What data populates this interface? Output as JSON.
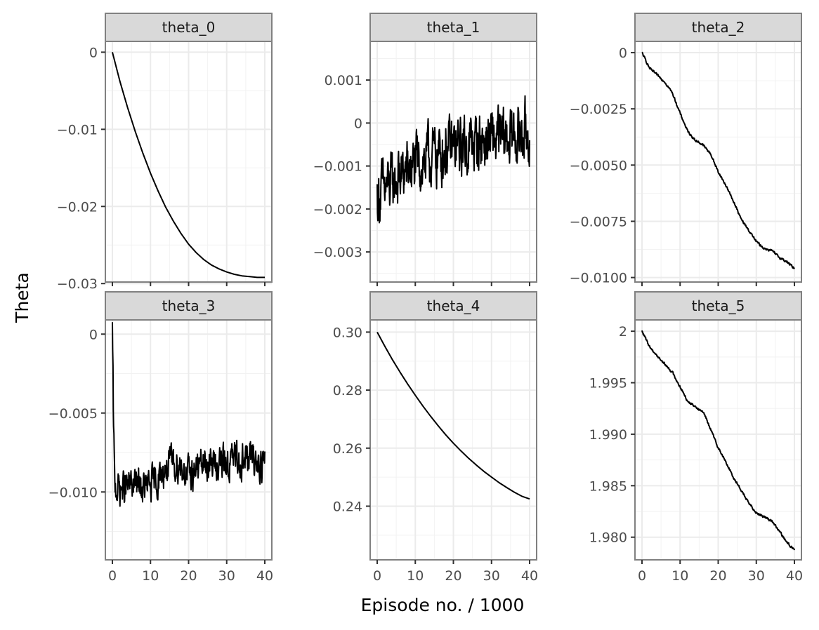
{
  "figure": {
    "xlabel": "Episode no. / 1000",
    "ylabel": "Theta"
  },
  "chart_data": [
    {
      "type": "line",
      "panel": "theta_0",
      "title": "theta_0",
      "xlim": [
        0,
        40
      ],
      "ylim": [
        -0.0298,
        0.0014
      ],
      "xticks": [
        0,
        10,
        20,
        30,
        40
      ],
      "xtick_labels": [
        "0",
        "10",
        "20",
        "30",
        "40"
      ],
      "yticks": [
        0,
        -0.01,
        -0.02,
        -0.03
      ],
      "ytick_labels": [
        "0",
        "−0.01",
        "−0.02",
        "−0.03"
      ],
      "grid": true,
      "noise": 0,
      "series": [
        {
          "x": [
            0,
            2,
            4,
            6,
            8,
            10,
            12,
            14,
            16,
            18,
            20,
            22,
            24,
            26,
            28,
            30,
            32,
            34,
            36,
            38,
            40
          ],
          "values": [
            0,
            -0.0038,
            -0.0072,
            -0.0103,
            -0.0131,
            -0.0157,
            -0.018,
            -0.0201,
            -0.0219,
            -0.0235,
            -0.0249,
            -0.026,
            -0.0269,
            -0.0276,
            -0.0281,
            -0.0285,
            -0.0288,
            -0.029,
            -0.0291,
            -0.0292,
            -0.0292
          ]
        }
      ]
    },
    {
      "type": "line",
      "panel": "theta_1",
      "title": "theta_1",
      "xlim": [
        0,
        40
      ],
      "ylim": [
        -0.0037,
        0.0019
      ],
      "xticks": [
        0,
        10,
        20,
        30,
        40
      ],
      "xtick_labels": [
        "0",
        "10",
        "20",
        "30",
        "40"
      ],
      "yticks": [
        0.001,
        0,
        -0.001,
        -0.002,
        -0.003
      ],
      "ytick_labels": [
        "0.001",
        "0",
        "−0.001",
        "−0.002",
        "−0.003"
      ],
      "grid": true,
      "noise": 0.0011,
      "series": [
        {
          "x": [
            0,
            4,
            8,
            12,
            16,
            20,
            24,
            28,
            32,
            36,
            40
          ],
          "values": [
            -0.0017,
            -0.0014,
            -0.0011,
            -0.0009,
            -0.0007,
            -0.0006,
            -0.0005,
            -0.0004,
            -0.0004,
            -0.0003,
            -0.0002
          ]
        }
      ]
    },
    {
      "type": "line",
      "panel": "theta_2",
      "title": "theta_2",
      "xlim": [
        0,
        40
      ],
      "ylim": [
        -0.0102,
        0.0005
      ],
      "xticks": [
        0,
        10,
        20,
        30,
        40
      ],
      "xtick_labels": [
        "0",
        "10",
        "20",
        "30",
        "40"
      ],
      "yticks": [
        0,
        -0.0025,
        -0.005,
        -0.0075,
        -0.01
      ],
      "ytick_labels": [
        "0",
        "−0.0025",
        "−0.0050",
        "−0.0075",
        "−0.0100"
      ],
      "grid": true,
      "noise": 8e-05,
      "series": [
        {
          "x": [
            0,
            2,
            4,
            6,
            8,
            10,
            12,
            14,
            16,
            18,
            20,
            22,
            24,
            26,
            28,
            30,
            32,
            34,
            36,
            38,
            40
          ],
          "values": [
            0,
            -0.0007,
            -0.001,
            -0.0013,
            -0.0018,
            -0.0027,
            -0.0035,
            -0.0039,
            -0.0041,
            -0.0045,
            -0.0053,
            -0.0059,
            -0.0066,
            -0.0074,
            -0.0079,
            -0.0084,
            -0.0087,
            -0.0088,
            -0.0091,
            -0.0093,
            -0.0096
          ]
        }
      ]
    },
    {
      "type": "line",
      "panel": "theta_3",
      "title": "theta_3",
      "xlim": [
        0,
        40
      ],
      "ylim": [
        -0.0143,
        0.0009
      ],
      "xticks": [
        0,
        10,
        20,
        30,
        40
      ],
      "xtick_labels": [
        "0",
        "10",
        "20",
        "30",
        "40"
      ],
      "yticks": [
        0,
        -0.005,
        -0.01
      ],
      "ytick_labels": [
        "0",
        "−0.005",
        "−0.010"
      ],
      "grid": true,
      "noise": 0.0017,
      "series": [
        {
          "x": [
            0,
            0.3,
            0.6,
            1,
            2,
            4,
            6,
            8,
            10,
            12,
            14,
            16,
            18,
            20,
            22,
            24,
            26,
            28,
            30,
            32,
            34,
            36,
            38,
            40
          ],
          "values": [
            0.0002,
            -0.006,
            -0.0095,
            -0.0097,
            -0.0098,
            -0.0097,
            -0.0095,
            -0.0098,
            -0.0096,
            -0.0092,
            -0.0085,
            -0.0082,
            -0.0083,
            -0.009,
            -0.0085,
            -0.0082,
            -0.0083,
            -0.0081,
            -0.0083,
            -0.0079,
            -0.008,
            -0.0078,
            -0.0081,
            -0.0082
          ]
        }
      ]
    },
    {
      "type": "line",
      "panel": "theta_4",
      "title": "theta_4",
      "xlim": [
        0,
        40
      ],
      "ylim": [
        0.2215,
        0.3042
      ],
      "xticks": [
        0,
        10,
        20,
        30,
        40
      ],
      "xtick_labels": [
        "0",
        "10",
        "20",
        "30",
        "40"
      ],
      "yticks": [
        0.3,
        0.28,
        0.26,
        0.24
      ],
      "ytick_labels": [
        "0.30",
        "0.28",
        "0.26",
        "0.24"
      ],
      "grid": true,
      "noise": 0,
      "series": [
        {
          "x": [
            0,
            2,
            4,
            6,
            8,
            10,
            12,
            14,
            16,
            18,
            20,
            22,
            24,
            26,
            28,
            30,
            32,
            34,
            36,
            38,
            40
          ],
          "values": [
            0.3,
            0.2951,
            0.2905,
            0.2862,
            0.2821,
            0.2782,
            0.2745,
            0.271,
            0.2677,
            0.2646,
            0.2617,
            0.259,
            0.2565,
            0.2542,
            0.252,
            0.25,
            0.2481,
            0.2464,
            0.2448,
            0.2434,
            0.2425
          ]
        }
      ]
    },
    {
      "type": "line",
      "panel": "theta_5",
      "title": "theta_5",
      "xlim": [
        0,
        40
      ],
      "ylim": [
        1.9778,
        2.0011
      ],
      "xticks": [
        0,
        10,
        20,
        30,
        40
      ],
      "xtick_labels": [
        "0",
        "10",
        "20",
        "30",
        "40"
      ],
      "yticks": [
        2,
        1.995,
        1.99,
        1.985,
        1.98
      ],
      "ytick_labels": [
        "2",
        "1.995",
        "1.990",
        "1.985",
        "1.980"
      ],
      "grid": true,
      "noise": 0.00018,
      "series": [
        {
          "x": [
            0,
            2,
            4,
            6,
            8,
            10,
            12,
            14,
            16,
            18,
            20,
            22,
            24,
            26,
            28,
            30,
            32,
            34,
            36,
            38,
            40
          ],
          "values": [
            2,
            1.9985,
            1.9976,
            1.9968,
            1.996,
            1.9946,
            1.9932,
            1.9927,
            1.9922,
            1.9905,
            1.9887,
            1.9873,
            1.9858,
            1.9846,
            1.9833,
            1.9824,
            1.982,
            1.9816,
            1.9806,
            1.9795,
            1.9788
          ]
        }
      ]
    }
  ]
}
